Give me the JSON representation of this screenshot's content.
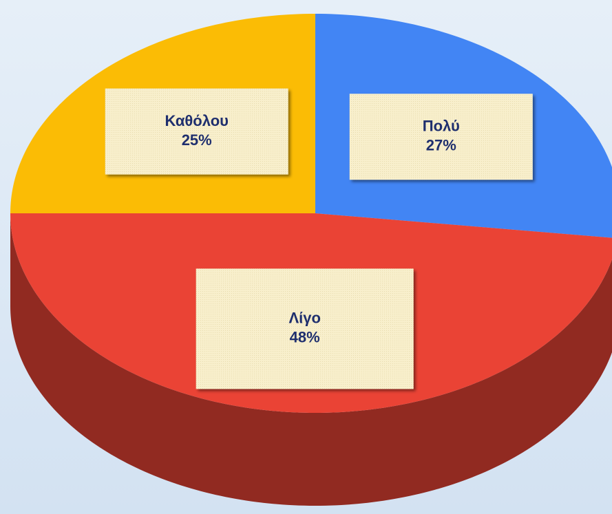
{
  "chart_data": {
    "type": "pie",
    "categories": [
      "Πολύ",
      "Λίγο",
      "Καθόλου"
    ],
    "values": [
      27,
      48,
      25
    ],
    "value_labels": [
      "27%",
      "48%",
      "25%"
    ],
    "colors": [
      "#4285f4",
      "#ea4335",
      "#fbbc05"
    ]
  }
}
